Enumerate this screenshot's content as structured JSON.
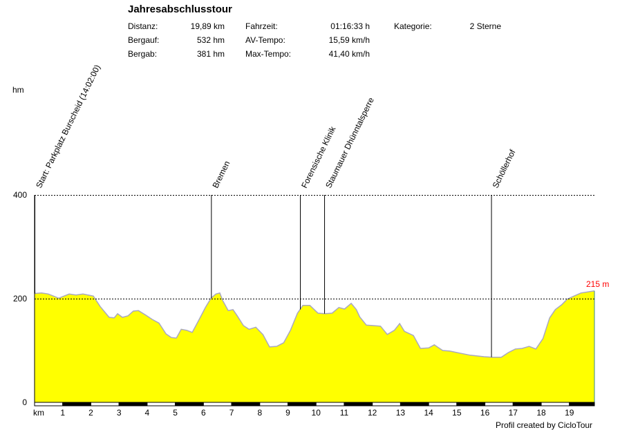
{
  "header": {
    "title": "Jahresabschlusstour",
    "stats": [
      {
        "label": "Distanz:",
        "value": "19,89 km"
      },
      {
        "label": "Bergauf:",
        "value": "532 hm"
      },
      {
        "label": "Bergab:",
        "value": "381 hm"
      },
      {
        "label": "Fahrzeit:",
        "value": "01:16:33 h"
      },
      {
        "label": "AV-Tempo:",
        "value": "15,59 km/h"
      },
      {
        "label": "Max-Tempo:",
        "value": "41,40 km/h"
      },
      {
        "label": "Kategorie:",
        "value": "2 Sterne"
      }
    ]
  },
  "footer": "Profil created by CicloTour",
  "colors": {
    "fill": "#ffff00",
    "line": "#a8a8c0",
    "end_label": "#ff0000"
  },
  "chart_data": {
    "type": "area",
    "title": "Jahresabschlusstour",
    "xlabel": "km",
    "ylabel": "hm",
    "xlim": [
      0,
      19.89
    ],
    "ylim": [
      0,
      400
    ],
    "yticks": [
      0,
      200,
      400
    ],
    "ytick_labels": [
      "0",
      "200",
      "400"
    ],
    "xticks": [
      1,
      2,
      3,
      4,
      5,
      6,
      7,
      8,
      9,
      10,
      11,
      12,
      13,
      14,
      15,
      16,
      17,
      18,
      19
    ],
    "xtick_labels": [
      "1",
      "2",
      "3",
      "4",
      "5",
      "6",
      "7",
      "8",
      "9",
      "10",
      "11",
      "12",
      "13",
      "14",
      "15",
      "16",
      "17",
      "18",
      "19"
    ],
    "grid": "dashed at 200 and 400",
    "end_label": "215 m",
    "waypoints": [
      {
        "km": 0,
        "name": "Start: Parkplatz Burscheid (14:02:00)"
      },
      {
        "km": 6.27,
        "name": "Bremen"
      },
      {
        "km": 9.43,
        "name": "Forensische Klinik"
      },
      {
        "km": 10.29,
        "name": "Staumauer Dhünntalsperre"
      },
      {
        "km": 16.22,
        "name": "Schöllerhof"
      }
    ],
    "x": [
      0,
      0.25,
      0.49,
      0.86,
      1.23,
      1.47,
      1.72,
      2.09,
      2.33,
      2.65,
      2.83,
      2.95,
      3.12,
      3.32,
      3.51,
      3.69,
      3.93,
      4.18,
      4.42,
      4.67,
      4.86,
      5.04,
      5.21,
      5.41,
      5.6,
      5.85,
      6.07,
      6.27,
      6.44,
      6.58,
      6.68,
      6.88,
      7.05,
      7.2,
      7.42,
      7.62,
      7.86,
      8.11,
      8.35,
      8.6,
      8.85,
      9.09,
      9.34,
      9.53,
      9.78,
      10.07,
      10.32,
      10.57,
      10.81,
      11.01,
      11.25,
      11.43,
      11.55,
      11.79,
      12.04,
      12.29,
      12.53,
      12.78,
      12.97,
      13.14,
      13.46,
      13.71,
      14.0,
      14.2,
      14.5,
      14.74,
      15.11,
      15.48,
      15.97,
      16.27,
      16.58,
      16.83,
      17.08,
      17.32,
      17.57,
      17.81,
      18.06,
      18.3,
      18.5,
      18.72,
      18.92,
      19.16,
      19.41,
      19.89
    ],
    "y": [
      210,
      211,
      209,
      201,
      209,
      207,
      209,
      205,
      185,
      164,
      163,
      171,
      164,
      167,
      176,
      177,
      169,
      160,
      153,
      132,
      125,
      124,
      141,
      139,
      135,
      160,
      183,
      201,
      209,
      211,
      197,
      177,
      179,
      167,
      148,
      141,
      145,
      131,
      107,
      108,
      115,
      139,
      172,
      187,
      187,
      172,
      171,
      172,
      183,
      180,
      191,
      179,
      165,
      149,
      148,
      147,
      131,
      139,
      152,
      137,
      129,
      104,
      105,
      111,
      100,
      99,
      95,
      91,
      88,
      87,
      87,
      96,
      103,
      104,
      108,
      103,
      123,
      163,
      179,
      188,
      199,
      205,
      211,
      215
    ]
  }
}
